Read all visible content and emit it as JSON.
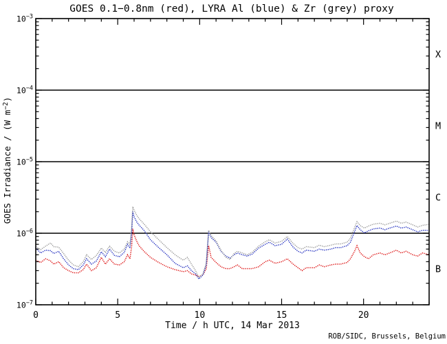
{
  "title": "GOES 0.1−0.8nm (red), LYRA Al (blue) & Zr (grey) proxy",
  "attribution": "ROB/SIDC, Brussels, Belgium",
  "colors": {
    "red": "#dd1111",
    "blue": "#2431c0",
    "grey": "#9a9a9a",
    "axis": "#000000",
    "background": "#ffffff"
  },
  "axes": {
    "x": {
      "label": "Time / h UTC, 14 Mar 2013",
      "min": 0,
      "max": 24,
      "major_ticks": [
        0,
        5,
        10,
        15,
        20
      ],
      "minor_step": 1
    },
    "y": {
      "label_prefix": "GOES Irradiance / (W m",
      "label_sup": "−2",
      "label_suffix": ")",
      "scale": "log",
      "tick_exponents": [
        -3,
        -4,
        -5,
        -6,
        -7
      ]
    },
    "right_class_labels": [
      {
        "label": "X",
        "center_exponent": -3.5
      },
      {
        "label": "M",
        "center_exponent": -4.5
      },
      {
        "label": "C",
        "center_exponent": -5.5
      },
      {
        "label": "B",
        "center_exponent": -6.5
      }
    ]
  },
  "reference_lines": [
    0.0001,
    1e-05,
    1e-06
  ],
  "chart_data": {
    "type": "line",
    "title": "GOES 0.1−0.8nm (red), LYRA Al (blue) & Zr (grey) proxy",
    "xlabel": "Time / h UTC, 14 Mar 2013",
    "ylabel": "GOES Irradiance / (W m−2)",
    "xlim": [
      0,
      24
    ],
    "ylim": [
      1e-07,
      0.001
    ],
    "grid": false,
    "legend": "in-title",
    "y_scale": 1e-07,
    "x_hours": [
      0,
      0.3,
      0.6,
      0.9,
      1.1,
      1.4,
      1.7,
      2.0,
      2.3,
      2.6,
      2.9,
      3.1,
      3.4,
      3.7,
      4.0,
      4.25,
      4.5,
      4.8,
      5.1,
      5.4,
      5.6,
      5.75,
      5.85,
      5.92,
      6.0,
      6.15,
      6.3,
      6.6,
      7.0,
      7.5,
      8.0,
      8.5,
      9.0,
      9.25,
      9.5,
      9.75,
      9.95,
      10.2,
      10.4,
      10.55,
      10.7,
      11.0,
      11.3,
      11.6,
      11.85,
      12.1,
      12.3,
      12.6,
      12.9,
      13.2,
      13.6,
      14.0,
      14.25,
      14.6,
      15.0,
      15.35,
      15.7,
      16.0,
      16.25,
      16.5,
      17.0,
      17.3,
      17.6,
      18.0,
      18.3,
      18.6,
      19.0,
      19.2,
      19.45,
      19.6,
      19.8,
      20.05,
      20.3,
      20.6,
      21.0,
      21.3,
      21.6,
      22.0,
      22.3,
      22.6,
      23.0,
      23.3,
      23.6,
      24.0
    ],
    "series": [
      {
        "name": "GOES 0.1-0.8nm",
        "color_key": "red",
        "values": [
          4.2,
          3.9,
          4.4,
          4.1,
          3.7,
          4.0,
          3.3,
          3.0,
          2.8,
          2.8,
          3.1,
          3.7,
          3.0,
          3.3,
          4.6,
          3.7,
          4.4,
          3.7,
          3.6,
          4.0,
          5.0,
          4.4,
          6.5,
          11.5,
          9.5,
          7.8,
          6.7,
          5.6,
          4.6,
          3.9,
          3.4,
          3.1,
          2.9,
          3.0,
          2.7,
          2.6,
          2.5,
          2.6,
          3.2,
          6.7,
          4.6,
          3.9,
          3.4,
          3.2,
          3.2,
          3.4,
          3.6,
          3.2,
          3.2,
          3.2,
          3.4,
          4.0,
          4.2,
          3.8,
          4.0,
          4.4,
          3.7,
          3.3,
          3.0,
          3.3,
          3.3,
          3.6,
          3.4,
          3.6,
          3.7,
          3.7,
          3.9,
          4.4,
          5.6,
          6.7,
          5.3,
          4.7,
          4.4,
          5.0,
          5.3,
          5.0,
          5.3,
          5.8,
          5.3,
          5.6,
          5.0,
          4.8,
          5.3,
          5.0
        ]
      },
      {
        "name": "LYRA Al proxy",
        "color_key": "blue",
        "values": [
          6.2,
          5.3,
          5.8,
          5.7,
          5.2,
          5.6,
          4.4,
          3.6,
          3.2,
          3.1,
          3.6,
          4.4,
          3.7,
          4.1,
          5.5,
          4.7,
          6.0,
          4.9,
          4.7,
          5.4,
          7.0,
          6.2,
          10.0,
          20.0,
          17.0,
          14.5,
          13.0,
          11.0,
          8.1,
          6.3,
          5.0,
          3.8,
          3.3,
          3.5,
          3.0,
          2.7,
          2.3,
          2.6,
          3.6,
          10.5,
          8.7,
          7.5,
          5.6,
          4.8,
          4.5,
          5.0,
          5.3,
          5.0,
          4.8,
          5.1,
          6.2,
          7.0,
          7.5,
          6.7,
          7.0,
          8.3,
          6.4,
          5.6,
          5.3,
          5.8,
          5.6,
          6.0,
          5.8,
          6.0,
          6.3,
          6.3,
          6.7,
          7.5,
          10.5,
          12.8,
          11.2,
          10.1,
          10.8,
          11.5,
          11.8,
          11.2,
          11.8,
          12.6,
          11.8,
          12.2,
          11.2,
          10.4,
          11.0,
          11.0
        ]
      },
      {
        "name": "LYRA Zr proxy",
        "color_key": "grey",
        "values": [
          6.5,
          5.9,
          6.6,
          7.3,
          6.5,
          6.4,
          5.2,
          4.2,
          3.6,
          3.4,
          4.0,
          5.0,
          4.3,
          4.9,
          6.2,
          5.4,
          6.6,
          5.6,
          5.3,
          6.0,
          7.6,
          7.0,
          12.0,
          23.5,
          21.0,
          18.0,
          16.0,
          13.5,
          10.5,
          8.1,
          6.3,
          5.0,
          4.2,
          4.6,
          3.7,
          3.0,
          2.4,
          2.7,
          3.8,
          11.0,
          9.3,
          7.8,
          5.8,
          4.6,
          4.3,
          5.2,
          5.6,
          5.3,
          5.0,
          5.4,
          6.6,
          7.6,
          8.1,
          7.3,
          7.7,
          9.0,
          7.2,
          6.3,
          6.0,
          6.5,
          6.3,
          6.8,
          6.5,
          6.8,
          7.1,
          7.1,
          7.5,
          8.5,
          12.0,
          14.5,
          12.8,
          11.8,
          12.6,
          13.4,
          13.8,
          13.1,
          13.8,
          14.8,
          13.8,
          14.3,
          13.1,
          12.2,
          12.9,
          13.3
        ]
      }
    ]
  }
}
